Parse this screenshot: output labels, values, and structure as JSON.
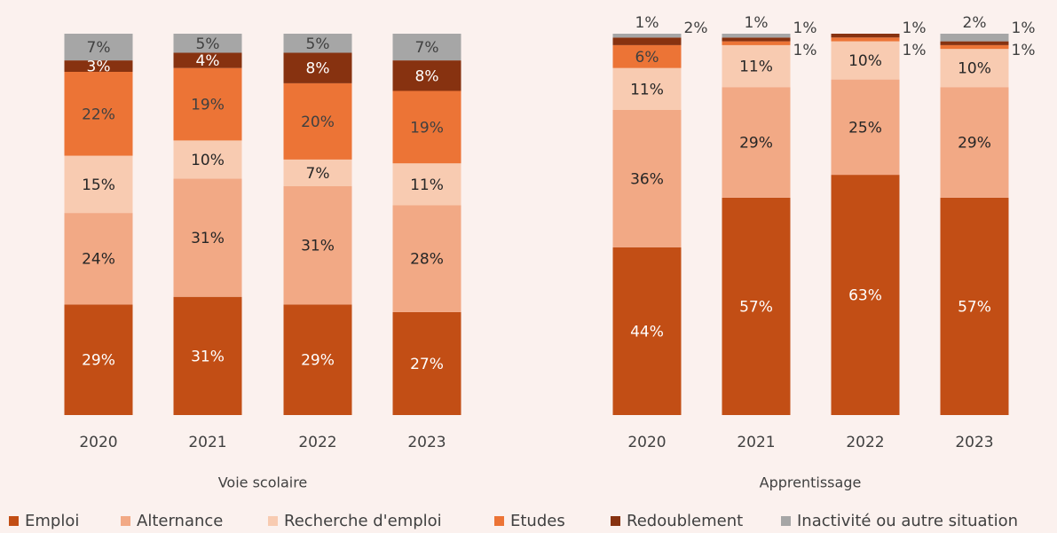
{
  "chart_data": {
    "type": "bar",
    "stacked": true,
    "ylim": [
      0,
      100
    ],
    "legend": [
      {
        "name": "Emploi",
        "color": "#c24e15"
      },
      {
        "name": "Alternance",
        "color": "#f2a985"
      },
      {
        "name": "Recherche d'emploi",
        "color": "#f8cbb1"
      },
      {
        "name": "Etudes",
        "color": "#ec7436"
      },
      {
        "name": "Redoublement",
        "color": "#873210"
      },
      {
        "name": "Inactivité ou autre situation",
        "color": "#a6a6a6"
      }
    ],
    "panels": [
      {
        "label": "Voie scolaire",
        "categories": [
          "2020",
          "2021",
          "2022",
          "2023"
        ],
        "series": [
          {
            "values": [
              29,
              31,
              29,
              27
            ],
            "value_labels": [
              "29%",
              "31%",
              "29%",
              "27%"
            ]
          },
          {
            "values": [
              24,
              31,
              31,
              28
            ],
            "value_labels": [
              "24%",
              "31%",
              "31%",
              "28%"
            ]
          },
          {
            "values": [
              15,
              10,
              7,
              11
            ],
            "value_labels": [
              "15%",
              "10%",
              "7%",
              "11%"
            ]
          },
          {
            "values": [
              22,
              19,
              20,
              19
            ],
            "value_labels": [
              "22%",
              "19%",
              "20%",
              "19%"
            ]
          },
          {
            "values": [
              3,
              4,
              8,
              8
            ],
            "value_labels": [
              "3%",
              "4%",
              "8%",
              "8%"
            ]
          },
          {
            "values": [
              7,
              5,
              5,
              7
            ],
            "value_labels": [
              "7%",
              "5%",
              "5%",
              "7%"
            ]
          }
        ]
      },
      {
        "label": "Apprentissage",
        "categories": [
          "2020",
          "2021",
          "2022",
          "2023"
        ],
        "series": [
          {
            "values": [
              44,
              57,
              63,
              57
            ],
            "value_labels": [
              "44%",
              "57%",
              "63%",
              "57%"
            ]
          },
          {
            "values": [
              36,
              29,
              25,
              29
            ],
            "value_labels": [
              "36%",
              "29%",
              "25%",
              "29%"
            ]
          },
          {
            "values": [
              11,
              11,
              10,
              10
            ],
            "value_labels": [
              "11%",
              "11%",
              "10%",
              "10%"
            ]
          },
          {
            "values": [
              6,
              1,
              1,
              1
            ],
            "value_labels": [
              "6%",
              "1%",
              "1%",
              "1%"
            ]
          },
          {
            "values": [
              2,
              1,
              1,
              1
            ],
            "value_labels": [
              "2%",
              "1%",
              "1%",
              "1%"
            ]
          },
          {
            "values": [
              1,
              1,
              null,
              2
            ],
            "value_labels": [
              "1%",
              "1%",
              null,
              "2%"
            ]
          }
        ]
      }
    ]
  }
}
